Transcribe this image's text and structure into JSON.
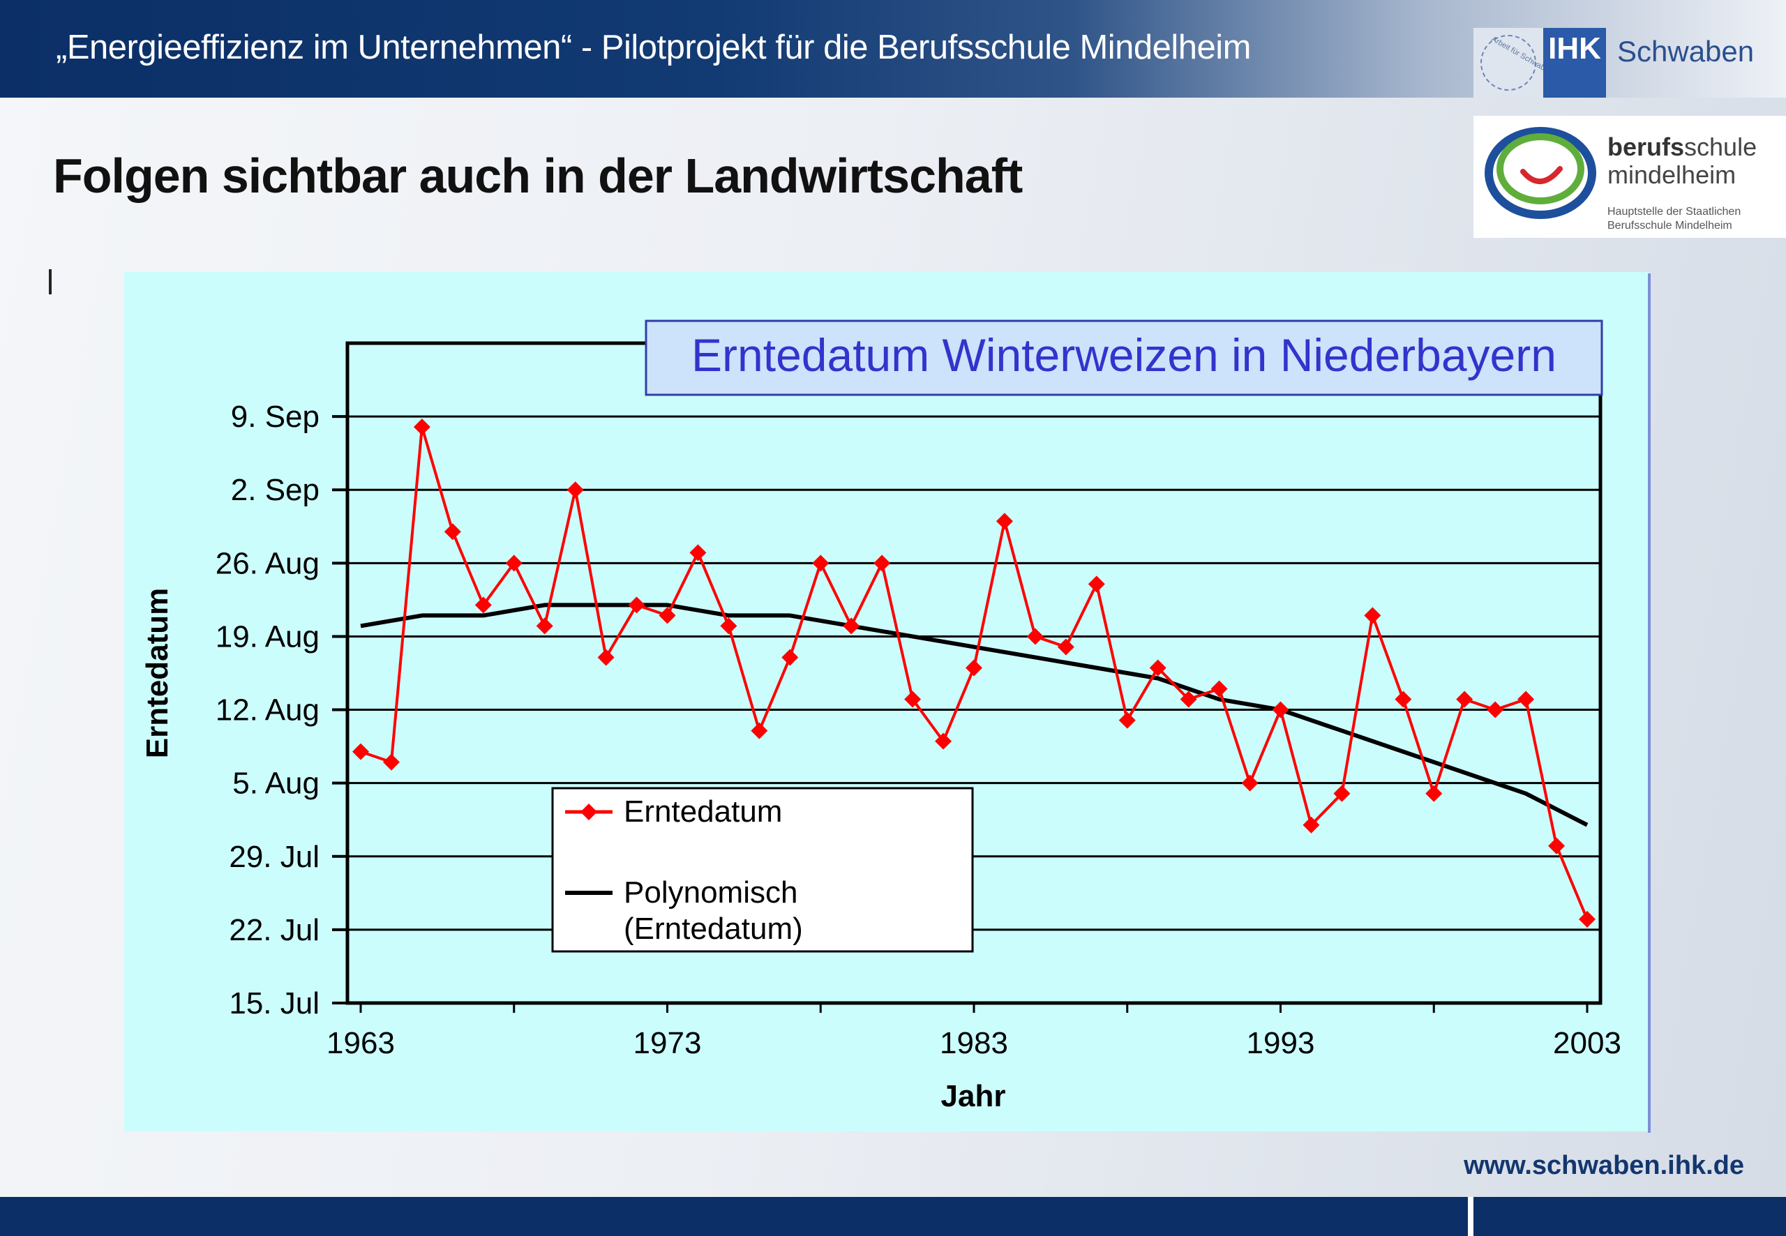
{
  "header": {
    "title": "„Energieeffizienz im Unternehmen“ - Pilotprojekt für die Berufsschule Mindelheim",
    "ihk_box": "IHK",
    "ihk_text": "Schwaben",
    "ihk_ring_text": "Arbeit für Schwaben",
    "school_name_bold": "berufs",
    "school_name_rest": "schule",
    "school_name_line2": "mindelheim",
    "school_sub": "Hauptstelle der Staatlichen Berufsschule Mindelheim"
  },
  "slide": {
    "title": "Folgen sichtbar auch in der Landwirtschaft"
  },
  "footer": {
    "url": "www.schwaben.ihk.de"
  },
  "colors": {
    "panel": "#ccfdfd",
    "series": "#ff0000",
    "trend": "#000000",
    "title_text": "#3333cc",
    "title_box": "#cde2fb"
  },
  "chart_data": {
    "type": "line",
    "title": "Erntedatum Winterweizen in Niederbayern",
    "xlabel": "Jahr",
    "ylabel": "Erntedatum",
    "xlim": [
      1963,
      2003
    ],
    "x_ticks": [
      "1963",
      "1973",
      "1983",
      "1993",
      "2003"
    ],
    "y_ticks": [
      "15. Jul",
      "22. Jul",
      "29. Jul",
      "5. Aug",
      "12. Aug",
      "19. Aug",
      "26. Aug",
      "2. Sep",
      "9. Sep"
    ],
    "y_tick_values": [
      "1900-07-15",
      "1900-07-22",
      "1900-07-29",
      "1900-08-05",
      "1900-08-12",
      "1900-08-19",
      "1900-08-26",
      "1900-09-02",
      "1900-09-09"
    ],
    "ylim": [
      "1900-07-15",
      "1900-09-16"
    ],
    "grid": true,
    "legend_position": "lower-left",
    "series": [
      {
        "name": "Erntedatum",
        "marker": "diamond",
        "x": [
          1963,
          1964,
          1965,
          1966,
          1967,
          1968,
          1969,
          1970,
          1971,
          1972,
          1973,
          1974,
          1975,
          1976,
          1977,
          1978,
          1979,
          1980,
          1981,
          1982,
          1983,
          1984,
          1985,
          1986,
          1987,
          1988,
          1989,
          1990,
          1991,
          1992,
          1993,
          1994,
          1995,
          1996,
          1997,
          1998,
          1999,
          2000,
          2001,
          2002,
          2003
        ],
        "values": [
          "1900-08-08",
          "1900-08-07",
          "1900-09-08",
          "1900-08-29",
          "1900-08-22",
          "1900-08-26",
          "1900-08-20",
          "1900-09-02",
          "1900-08-17",
          "1900-08-22",
          "1900-08-21",
          "1900-08-27",
          "1900-08-20",
          "1900-08-10",
          "1900-08-17",
          "1900-08-26",
          "1900-08-20",
          "1900-08-26",
          "1900-08-13",
          "1900-08-09",
          "1900-08-16",
          "1900-08-30",
          "1900-08-19",
          "1900-08-18",
          "1900-08-24",
          "1900-08-11",
          "1900-08-16",
          "1900-08-13",
          "1900-08-14",
          "1900-08-05",
          "1900-08-12",
          "1900-08-01",
          "1900-08-04",
          "1900-08-21",
          "1900-08-13",
          "1900-08-04",
          "1900-08-13",
          "1900-08-12",
          "1900-08-13",
          "1900-07-30",
          "1900-07-23"
        ]
      },
      {
        "name": "Polynomisch (Erntedatum)",
        "style": "trend",
        "x": [
          1963,
          1965,
          1967,
          1969,
          1971,
          1973,
          1975,
          1977,
          1979,
          1981,
          1983,
          1985,
          1987,
          1989,
          1991,
          1993,
          1995,
          1997,
          1999,
          2001,
          2003
        ],
        "values": [
          "1900-08-20",
          "1900-08-21",
          "1900-08-21",
          "1900-08-22",
          "1900-08-22",
          "1900-08-22",
          "1900-08-21",
          "1900-08-21",
          "1900-08-20",
          "1900-08-19",
          "1900-08-18",
          "1900-08-17",
          "1900-08-16",
          "1900-08-15",
          "1900-08-13",
          "1900-08-12",
          "1900-08-10",
          "1900-08-08",
          "1900-08-06",
          "1900-08-04",
          "1900-08-01"
        ]
      }
    ]
  }
}
